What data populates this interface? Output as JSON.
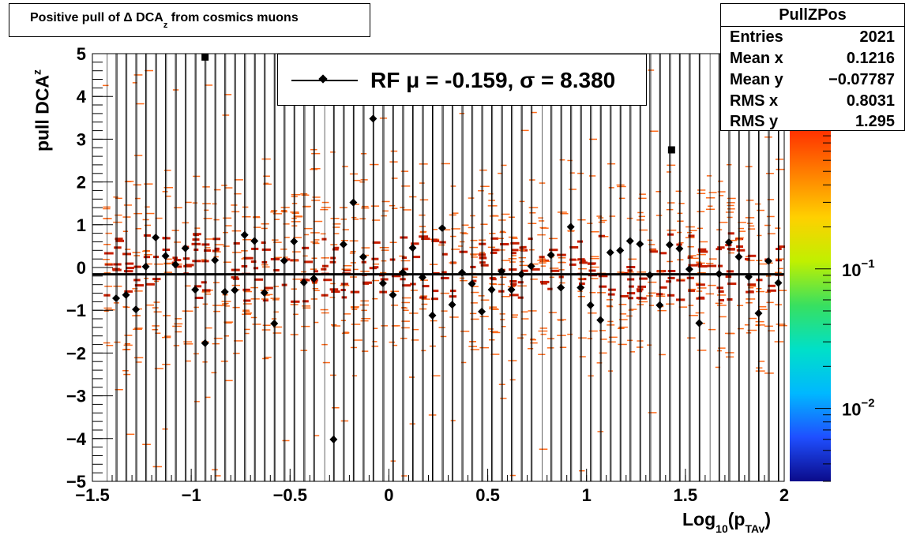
{
  "chart_data": {
    "type": "scatter",
    "title": {
      "main": "Positive pull of Δ DCA",
      "sub": "z",
      "tail": " from cosmics muons"
    },
    "xlabel": {
      "main": "Log",
      "sub": "10",
      "open": "(p",
      "sub2": "TAv",
      "close": ")"
    },
    "ylabel": {
      "main": "pull DCA",
      "sub": "z"
    },
    "xlim": [
      -1.5,
      2
    ],
    "ylim": [
      -5,
      5
    ],
    "x_ticks": [
      {
        "v": -1.5,
        "label": "−1.5"
      },
      {
        "v": -1,
        "label": "−1"
      },
      {
        "v": -0.5,
        "label": "−0.5"
      },
      {
        "v": 0,
        "label": "0"
      },
      {
        "v": 0.5,
        "label": "0.5"
      },
      {
        "v": 1,
        "label": "1"
      },
      {
        "v": 1.5,
        "label": "1.5"
      },
      {
        "v": 2,
        "label": "2"
      }
    ],
    "y_ticks": [
      {
        "v": 5,
        "label": "5"
      },
      {
        "v": 4,
        "label": "4"
      },
      {
        "v": 3,
        "label": "3"
      },
      {
        "v": 2,
        "label": "2"
      },
      {
        "v": 1,
        "label": "1"
      },
      {
        "v": 0,
        "label": "0"
      },
      {
        "v": -1,
        "label": "−1"
      },
      {
        "v": -2,
        "label": "−2"
      },
      {
        "v": -3,
        "label": "−3"
      },
      {
        "v": -4,
        "label": "−4"
      },
      {
        "v": -5,
        "label": "−5"
      }
    ],
    "grid": "vertical",
    "colorbar": {
      "scale": "log",
      "range": [
        0.003,
        1
      ],
      "colors": [
        "#0b0b8a",
        "#1f4fff",
        "#00b8ff",
        "#00e0c8",
        "#38e060",
        "#c0f000",
        "#ffd000",
        "#ff8000",
        "#ff3000"
      ],
      "labels": [
        {
          "v": 0.1,
          "base": "10",
          "exp": "−1"
        },
        {
          "v": 0.01,
          "base": "10",
          "exp": "−2"
        }
      ]
    },
    "heat_bins": {
      "color_low": "#ff6a1a",
      "color_high": "#c81e00",
      "x_start": -1.5,
      "x_step": 0.05,
      "y_sigma": 1.1
    },
    "profile": {
      "name": "RF",
      "marker": "diamond",
      "fit_mean": -0.159,
      "points": [
        [
          -1.38,
          -0.72
        ],
        [
          -1.33,
          -0.64
        ],
        [
          -1.28,
          -0.98
        ],
        [
          -1.23,
          0.02
        ],
        [
          -1.18,
          0.7
        ],
        [
          -1.13,
          0.27
        ],
        [
          -1.08,
          0.07
        ],
        [
          -1.03,
          0.45
        ],
        [
          -0.98,
          -0.52
        ],
        [
          -0.93,
          -1.77
        ],
        [
          -0.88,
          0.17
        ],
        [
          -0.83,
          -0.57
        ],
        [
          -0.78,
          -0.53
        ],
        [
          -0.73,
          0.76
        ],
        [
          -0.68,
          0.62
        ],
        [
          -0.63,
          -0.59
        ],
        [
          -0.58,
          -1.31
        ],
        [
          -0.53,
          0.16
        ],
        [
          -0.48,
          0.61
        ],
        [
          -0.43,
          -0.35
        ],
        [
          -0.38,
          -0.26
        ],
        [
          -0.28,
          -4.02
        ],
        [
          -0.23,
          0.54
        ],
        [
          -0.18,
          1.52
        ],
        [
          -0.13,
          0.25
        ],
        [
          -0.08,
          3.48
        ],
        [
          -0.03,
          -0.37
        ],
        [
          0.02,
          -0.64
        ],
        [
          0.07,
          -0.12
        ],
        [
          0.12,
          0.46
        ],
        [
          0.17,
          -0.23
        ],
        [
          0.22,
          -1.12
        ],
        [
          0.27,
          0.92
        ],
        [
          0.32,
          -0.87
        ],
        [
          0.37,
          -0.12
        ],
        [
          0.42,
          -0.38
        ],
        [
          0.47,
          -1.03
        ],
        [
          0.52,
          -0.52
        ],
        [
          0.57,
          -0.09
        ],
        [
          0.62,
          -0.52
        ],
        [
          0.67,
          -0.16
        ],
        [
          0.72,
          0.03
        ],
        [
          0.82,
          0.29
        ],
        [
          0.87,
          -0.47
        ],
        [
          0.92,
          0.95
        ],
        [
          0.97,
          -0.47
        ],
        [
          1.02,
          -0.88
        ],
        [
          1.07,
          -1.23
        ],
        [
          1.12,
          0.35
        ],
        [
          1.17,
          0.4
        ],
        [
          1.22,
          0.62
        ],
        [
          1.27,
          0.55
        ],
        [
          1.32,
          -0.18
        ],
        [
          1.37,
          -0.88
        ],
        [
          1.42,
          0.53
        ],
        [
          1.47,
          0.44
        ],
        [
          1.52,
          -0.04
        ],
        [
          1.57,
          -1.3
        ],
        [
          1.67,
          -0.15
        ],
        [
          1.72,
          0.59
        ],
        [
          1.77,
          0.25
        ],
        [
          1.82,
          -0.22
        ],
        [
          1.87,
          -1.07
        ],
        [
          1.92,
          0.15
        ],
        [
          1.97,
          -0.36
        ]
      ]
    },
    "boxes": [
      [
        -0.93,
        4.92
      ],
      [
        1.43,
        2.75
      ]
    ]
  },
  "title_box": {
    "label": "Positive pull of Δ DCA"
  },
  "stats": {
    "title": "PullZPos",
    "rows": [
      {
        "k": "Entries",
        "v": "2021"
      },
      {
        "k": "Mean x",
        "v": "0.1216"
      },
      {
        "k": "Mean y",
        "v": "−0.07787"
      },
      {
        "k": "RMS x",
        "v": "0.8031"
      },
      {
        "k": "RMS y",
        "v": "1.295"
      }
    ]
  },
  "legend": {
    "text": "RF μ = -0.159, σ =   8.380"
  }
}
